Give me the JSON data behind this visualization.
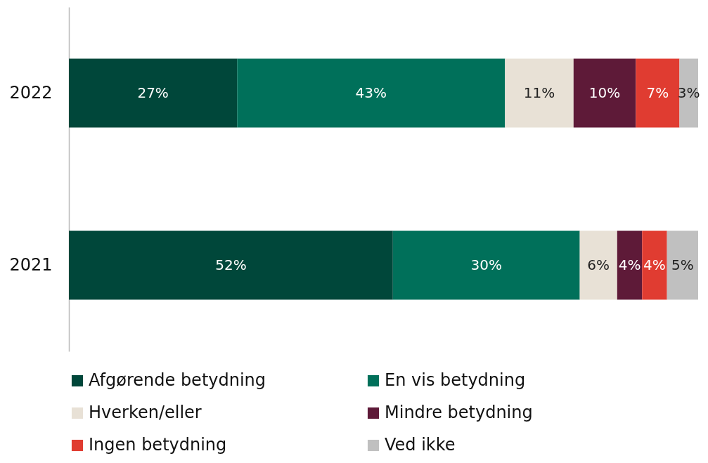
{
  "chart_data": {
    "type": "bar",
    "orientation": "horizontal",
    "stacked": true,
    "legend": "bottom",
    "grid": false,
    "categories": [
      "2022",
      "2021"
    ],
    "series": [
      {
        "name": "Afgørende betydning",
        "color": "#00473a",
        "values": [
          27,
          52
        ],
        "value_labels": [
          "27%",
          "52%"
        ]
      },
      {
        "name": "En vis betydning",
        "color": "#00705a",
        "values": [
          43,
          30
        ],
        "value_labels": [
          "43%",
          "30%"
        ]
      },
      {
        "name": "Hverken/eller",
        "color": "#e8e1d6",
        "values": [
          11,
          6
        ],
        "value_labels": [
          "11%",
          "6%"
        ]
      },
      {
        "name": "Mindre betydning",
        "color": "#5e1a38",
        "values": [
          10,
          4
        ],
        "value_labels": [
          "10%",
          "4%"
        ]
      },
      {
        "name": "Ingen betydning",
        "color": "#e03c31",
        "values": [
          7,
          4
        ],
        "value_labels": [
          "7%",
          "4%"
        ]
      },
      {
        "name": "Ved ikke",
        "color": "#c0c0c0",
        "values": [
          3,
          5
        ],
        "value_labels": [
          "3%",
          "5%"
        ]
      }
    ]
  }
}
